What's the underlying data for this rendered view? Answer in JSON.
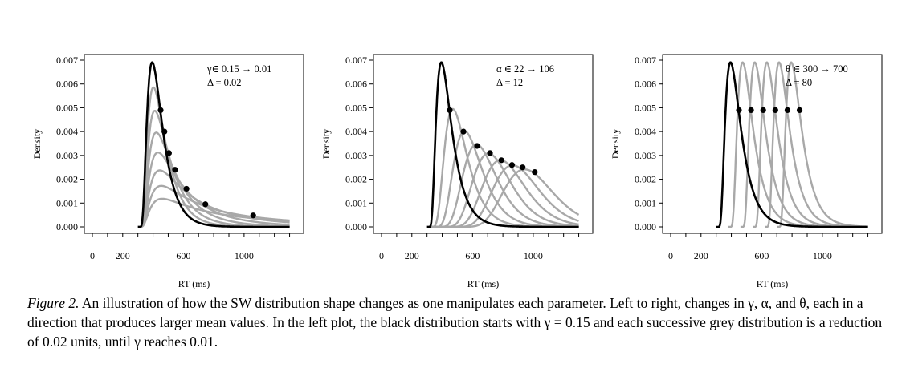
{
  "caption": {
    "label": "Figure 2.",
    "text": "An illustration of how the SW distribution shape changes as one manipulates each parameter. Left to right, changes in γ, α, and θ, each in a direction that produces larger mean values. In the left plot, the black distribution starts with γ = 0.15 and each successive grey distribution is a reduction of 0.02 units, until γ reaches 0.01."
  },
  "chart_data": [
    {
      "type": "line",
      "xlabel": "RT (ms)",
      "ylabel": "Density",
      "xlim": [
        0,
        1350
      ],
      "ylim": [
        0,
        0.007
      ],
      "xticks": [
        0,
        200,
        600,
        1000
      ],
      "yticks": [
        "0.000",
        "0.001",
        "0.002",
        "0.003",
        "0.004",
        "0.005",
        "0.006",
        "0.007"
      ],
      "annotation": [
        "γ∈ 0.15 → 0.01",
        "Δ = 0.02"
      ],
      "colors": {
        "base": "#000000",
        "variant": "#a8a8a8"
      },
      "series": [
        {
          "shift": 300,
          "alpha": 22,
          "theta": 300,
          "gamma": 0.15
        },
        {
          "shift": 300,
          "alpha": 22,
          "theta": 300,
          "gamma": 0.13
        },
        {
          "shift": 300,
          "alpha": 22,
          "theta": 300,
          "gamma": 0.11
        },
        {
          "shift": 300,
          "alpha": 22,
          "theta": 300,
          "gamma": 0.09
        },
        {
          "shift": 300,
          "alpha": 22,
          "theta": 300,
          "gamma": 0.07
        },
        {
          "shift": 300,
          "alpha": 22,
          "theta": 300,
          "gamma": 0.05
        },
        {
          "shift": 300,
          "alpha": 22,
          "theta": 300,
          "gamma": 0.03
        },
        {
          "shift": 300,
          "alpha": 22,
          "theta": 300,
          "gamma": 0.01
        }
      ],
      "markers": [
        {
          "x": 450,
          "y": 0.0049
        },
        {
          "x": 475,
          "y": 0.004
        },
        {
          "x": 505,
          "y": 0.0031
        },
        {
          "x": 545,
          "y": 0.0024
        },
        {
          "x": 620,
          "y": 0.0016
        },
        {
          "x": 745,
          "y": 0.00095
        },
        {
          "x": 1060,
          "y": 0.00048
        }
      ]
    },
    {
      "type": "line",
      "xlabel": "RT (ms)",
      "ylabel": "Density",
      "xlim": [
        0,
        1350
      ],
      "ylim": [
        0,
        0.007
      ],
      "xticks": [
        0,
        200,
        600,
        1000
      ],
      "yticks": [
        "0.000",
        "0.001",
        "0.002",
        "0.003",
        "0.004",
        "0.005",
        "0.006",
        "0.007"
      ],
      "annotation": [
        "α ∈ 22 → 106",
        "Δ = 12"
      ],
      "colors": {
        "base": "#000000",
        "variant": "#a8a8a8"
      },
      "series": [
        {
          "shift": 300,
          "alpha": 22,
          "theta": 300,
          "gamma": 0.15
        },
        {
          "shift": 300,
          "alpha": 34,
          "theta": 300,
          "gamma": 0.15
        },
        {
          "shift": 300,
          "alpha": 46,
          "theta": 300,
          "gamma": 0.15
        },
        {
          "shift": 300,
          "alpha": 58,
          "theta": 300,
          "gamma": 0.15
        },
        {
          "shift": 300,
          "alpha": 70,
          "theta": 300,
          "gamma": 0.15
        },
        {
          "shift": 300,
          "alpha": 82,
          "theta": 300,
          "gamma": 0.15
        },
        {
          "shift": 300,
          "alpha": 94,
          "theta": 300,
          "gamma": 0.15
        },
        {
          "shift": 300,
          "alpha": 106,
          "theta": 300,
          "gamma": 0.15
        }
      ],
      "markers": [
        {
          "x": 450,
          "y": 0.0049
        },
        {
          "x": 540,
          "y": 0.004
        },
        {
          "x": 630,
          "y": 0.0034
        },
        {
          "x": 715,
          "y": 0.0031
        },
        {
          "x": 790,
          "y": 0.0028
        },
        {
          "x": 860,
          "y": 0.0026
        },
        {
          "x": 930,
          "y": 0.0025
        },
        {
          "x": 1010,
          "y": 0.0023
        }
      ]
    },
    {
      "type": "line",
      "xlabel": "RT (ms)",
      "ylabel": "Density",
      "xlim": [
        0,
        1350
      ],
      "ylim": [
        0,
        0.007
      ],
      "xticks": [
        0,
        200,
        600,
        1000
      ],
      "yticks": [
        "0.000",
        "0.001",
        "0.002",
        "0.003",
        "0.004",
        "0.005",
        "0.006",
        "0.007"
      ],
      "annotation": [
        "θ ∈ 300 → 700",
        "Δ = 80"
      ],
      "colors": {
        "base": "#000000",
        "variant": "#a8a8a8"
      },
      "series": [
        {
          "shift": 300,
          "alpha": 22,
          "theta": 300,
          "gamma": 0.15
        },
        {
          "shift": 380,
          "alpha": 22,
          "theta": 380,
          "gamma": 0.15
        },
        {
          "shift": 460,
          "alpha": 22,
          "theta": 460,
          "gamma": 0.15
        },
        {
          "shift": 540,
          "alpha": 22,
          "theta": 540,
          "gamma": 0.15
        },
        {
          "shift": 620,
          "alpha": 22,
          "theta": 620,
          "gamma": 0.15
        },
        {
          "shift": 700,
          "alpha": 22,
          "theta": 700,
          "gamma": 0.15
        }
      ],
      "markers": [
        {
          "x": 450,
          "y": 0.0049
        },
        {
          "x": 530,
          "y": 0.0049
        },
        {
          "x": 610,
          "y": 0.0049
        },
        {
          "x": 690,
          "y": 0.0049
        },
        {
          "x": 770,
          "y": 0.0049
        },
        {
          "x": 850,
          "y": 0.0049
        }
      ]
    }
  ]
}
